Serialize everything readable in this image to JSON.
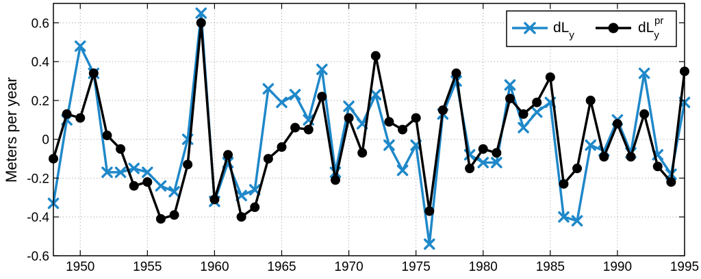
{
  "chart_data": {
    "type": "line",
    "title": "",
    "xlabel": "",
    "ylabel": "Meters per year",
    "xlim": [
      1948,
      1995
    ],
    "ylim": [
      -0.6,
      0.7
    ],
    "grid": true,
    "legend_position": "top-right",
    "xticks": [
      1950,
      1955,
      1960,
      1965,
      1970,
      1975,
      1980,
      1985,
      1990,
      1995
    ],
    "yticks": [
      -0.6,
      -0.4,
      -0.2,
      0,
      0.2,
      0.4,
      0.6
    ],
    "ytick_labels": [
      "-0.6",
      "-0.4",
      "-0.2",
      "0",
      "0.2",
      "0.4",
      "0.6"
    ],
    "x": [
      1948,
      1949,
      1950,
      1951,
      1952,
      1953,
      1954,
      1955,
      1956,
      1957,
      1958,
      1959,
      1960,
      1961,
      1962,
      1963,
      1964,
      1965,
      1966,
      1967,
      1968,
      1969,
      1970,
      1971,
      1972,
      1973,
      1974,
      1975,
      1976,
      1977,
      1978,
      1979,
      1980,
      1981,
      1982,
      1983,
      1984,
      1985,
      1986,
      1987,
      1988,
      1989,
      1990,
      1991,
      1992,
      1993,
      1994,
      1995
    ],
    "series": [
      {
        "name": "dL",
        "name_sub": "y",
        "name_sup": "",
        "color": "#1f88c9",
        "marker": "x",
        "values": [
          -0.33,
          0.1,
          0.48,
          0.34,
          -0.17,
          -0.17,
          -0.15,
          -0.17,
          -0.24,
          -0.27,
          0.0,
          0.65,
          -0.32,
          -0.12,
          -0.29,
          -0.26,
          0.26,
          0.19,
          0.23,
          0.1,
          0.36,
          -0.17,
          0.17,
          0.08,
          0.23,
          -0.03,
          -0.16,
          -0.03,
          -0.54,
          0.13,
          0.3,
          -0.08,
          -0.12,
          -0.12,
          0.28,
          0.06,
          0.14,
          0.19,
          -0.4,
          -0.42,
          -0.03,
          -0.06,
          0.1,
          -0.07,
          0.34,
          -0.08,
          -0.18,
          0.19
        ]
      },
      {
        "name": "dL",
        "name_sub": "y",
        "name_sup": "pr",
        "color": "#000000",
        "marker": "o",
        "values": [
          -0.1,
          0.13,
          0.11,
          0.34,
          0.02,
          -0.05,
          -0.24,
          -0.22,
          -0.41,
          -0.39,
          -0.13,
          0.6,
          -0.31,
          -0.08,
          -0.4,
          -0.35,
          -0.1,
          -0.04,
          0.06,
          0.05,
          0.22,
          -0.21,
          0.11,
          -0.07,
          0.43,
          0.09,
          0.05,
          0.11,
          -0.37,
          0.15,
          0.34,
          -0.15,
          -0.05,
          -0.07,
          0.21,
          0.13,
          0.19,
          0.32,
          -0.23,
          -0.15,
          0.2,
          -0.09,
          0.08,
          -0.09,
          0.13,
          -0.14,
          -0.22,
          0.35
        ]
      }
    ]
  }
}
